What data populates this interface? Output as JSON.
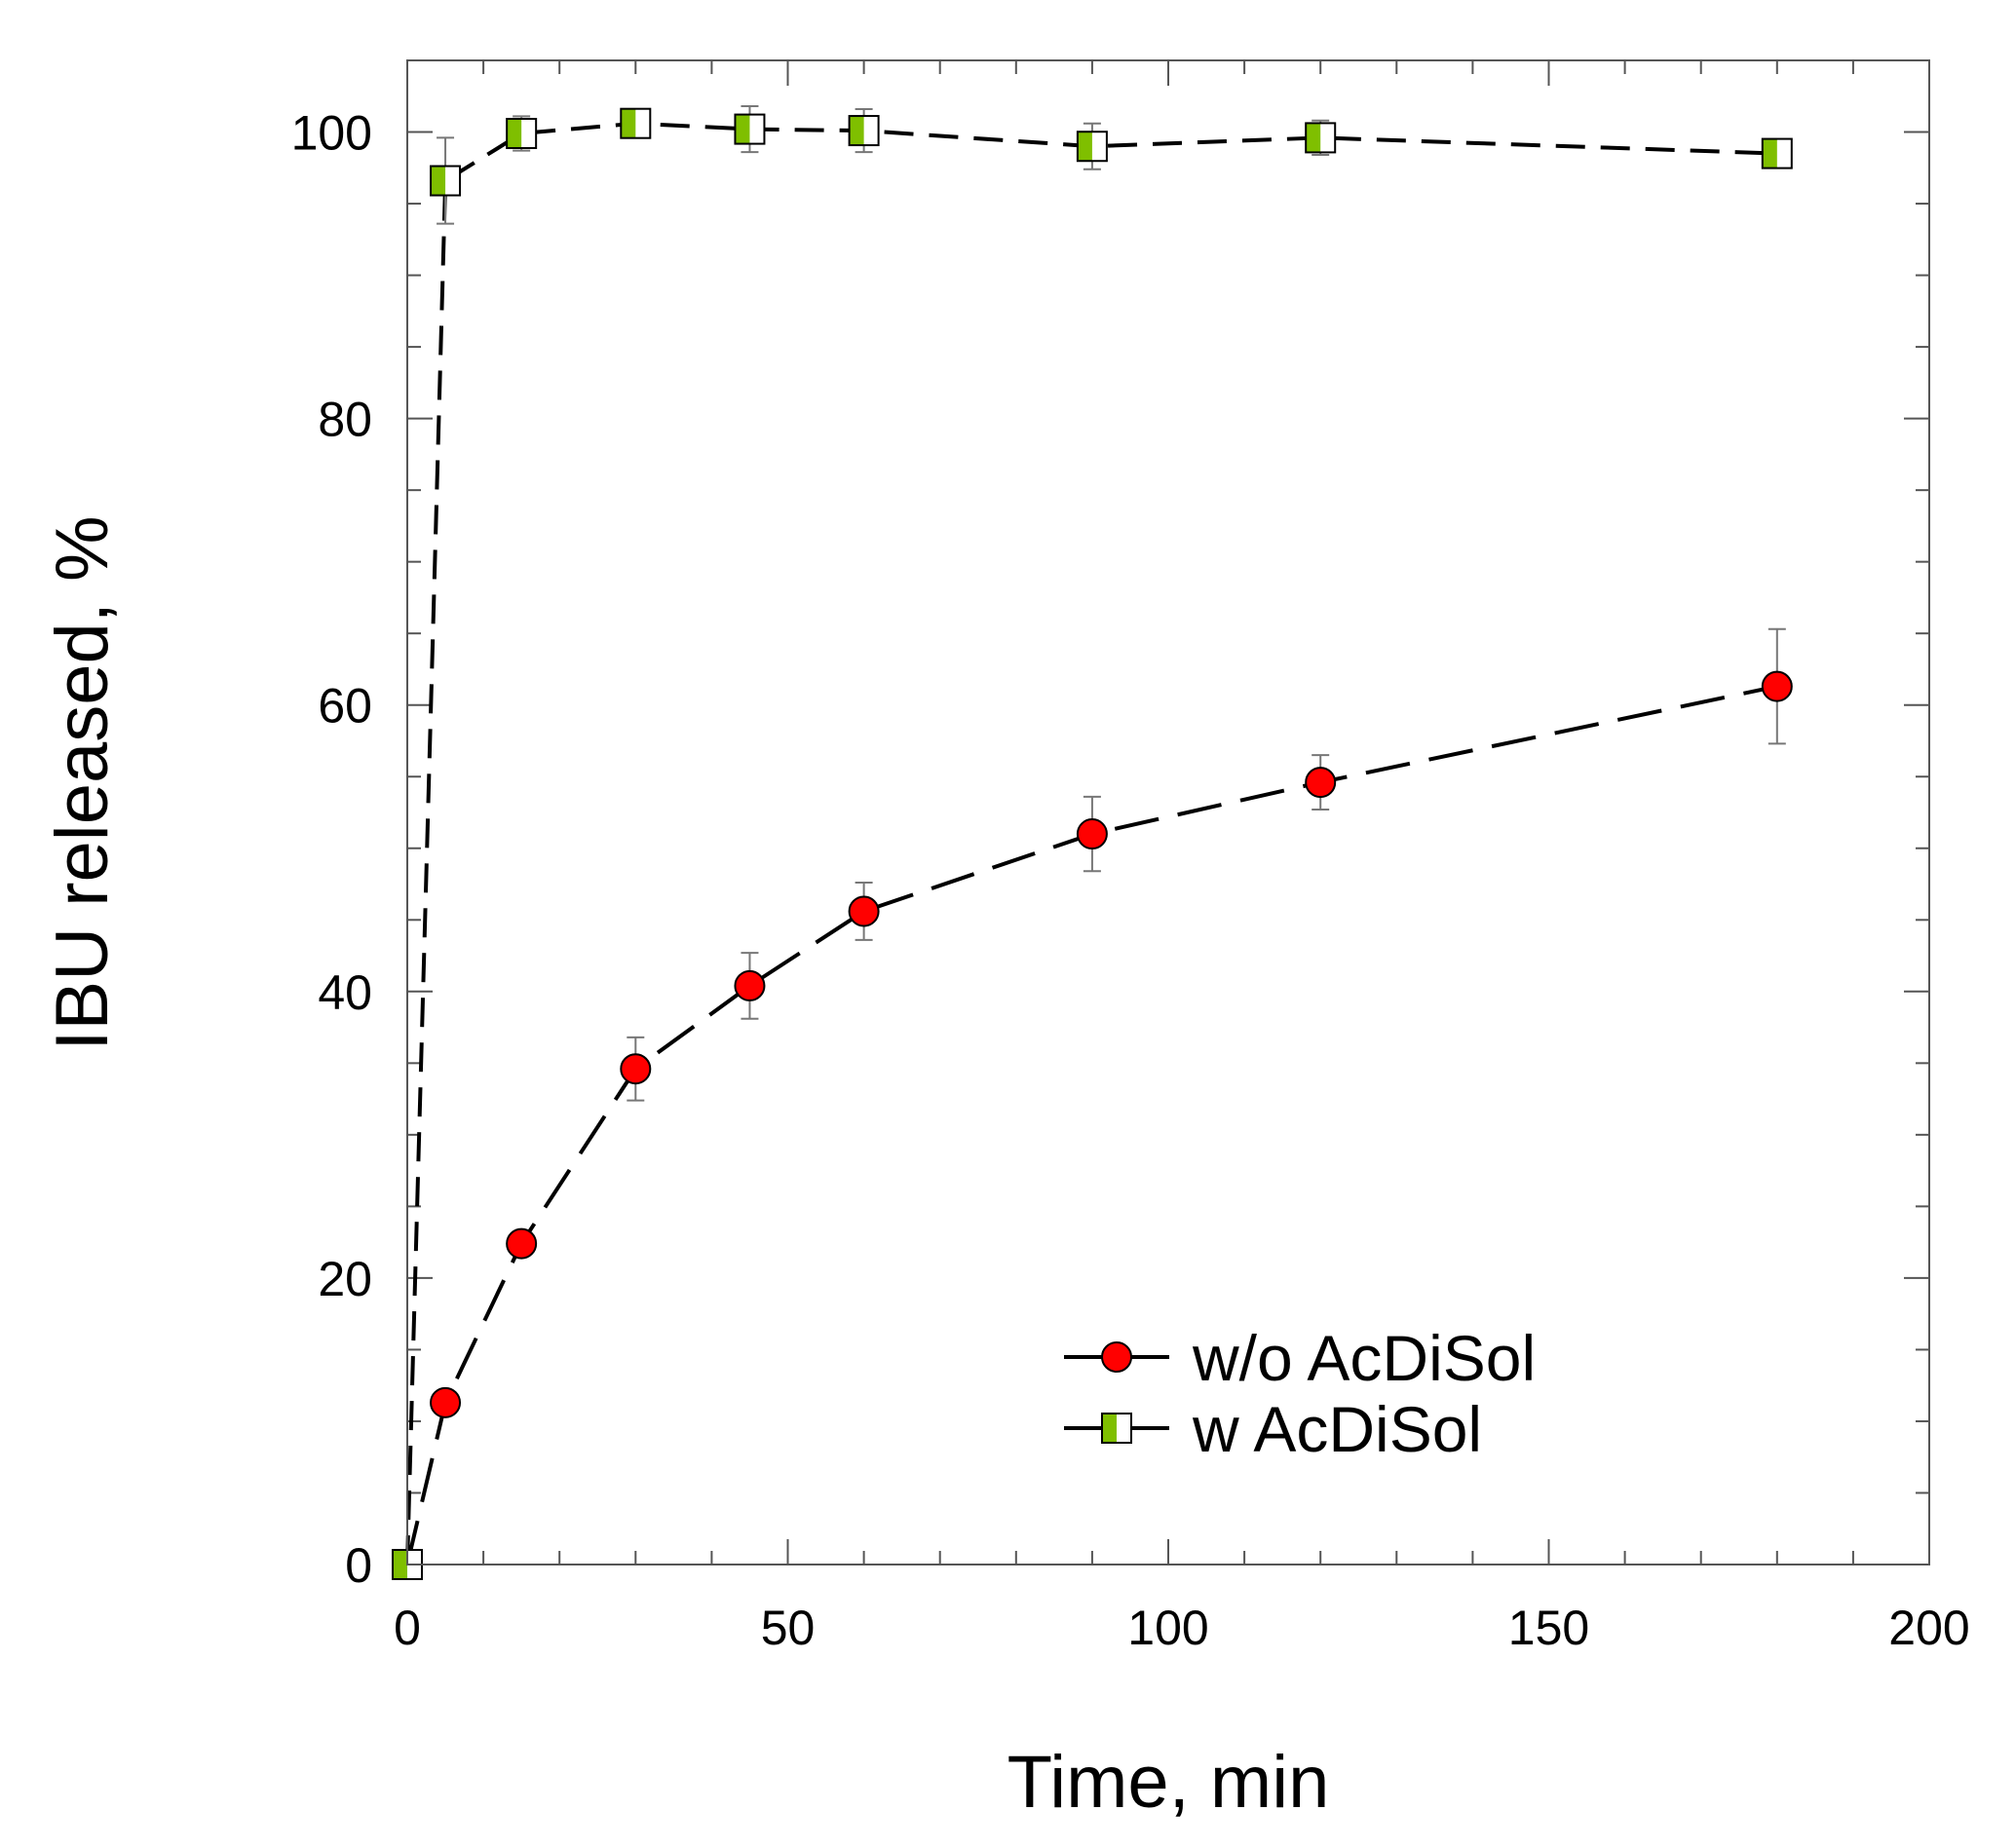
{
  "colors": {
    "red_marker": "#ff0000",
    "green_marker": "#7fbf00",
    "line": "#000000",
    "frame": "#555555",
    "errorbar": "#777777"
  },
  "chart_data": {
    "type": "line",
    "title": "",
    "xlabel": "Time, min",
    "ylabel": "IBU released, %",
    "xlim": [
      0,
      200
    ],
    "ylim": [
      0,
      105
    ],
    "x_ticks": [
      0,
      50,
      100,
      150,
      200
    ],
    "y_ticks": [
      0,
      20,
      40,
      60,
      80,
      100
    ],
    "x_minor_step": 10,
    "y_minor_step": 5,
    "grid": false,
    "legend_position": "lower-right",
    "series": [
      {
        "name": "w/o AcDiSol",
        "marker": "circle",
        "color": "#ff0000",
        "line_style": "long-dash",
        "x": [
          0,
          5,
          15,
          30,
          45,
          60,
          90,
          120,
          180
        ],
        "y": [
          0,
          11.3,
          22.4,
          34.6,
          40.4,
          45.6,
          51.0,
          54.6,
          61.3
        ],
        "error": [
          0,
          0.6,
          0.8,
          2.2,
          2.3,
          2.0,
          2.6,
          1.9,
          4.0
        ]
      },
      {
        "name": "w AcDiSol",
        "marker": "half-filled-square",
        "color": "#7fbf00",
        "line_style": "short-dash",
        "x": [
          0,
          5,
          15,
          30,
          45,
          60,
          90,
          120,
          180
        ],
        "y": [
          0,
          96.6,
          99.9,
          100.6,
          100.2,
          100.1,
          99.0,
          99.6,
          98.5
        ],
        "error": [
          0,
          3.0,
          1.2,
          0.7,
          1.6,
          1.5,
          1.6,
          1.2,
          0.6
        ]
      }
    ]
  }
}
